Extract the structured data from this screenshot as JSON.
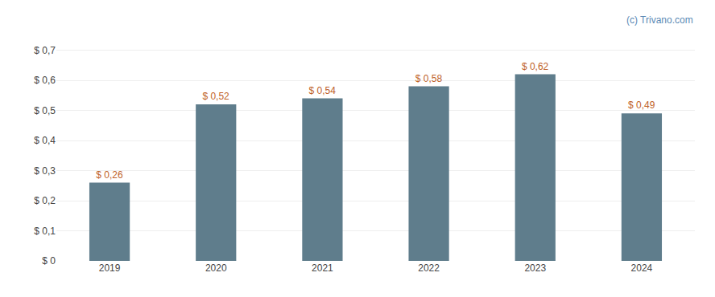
{
  "chart_data": {
    "type": "bar",
    "categories": [
      "2019",
      "2020",
      "2021",
      "2022",
      "2023",
      "2024"
    ],
    "values": [
      0.26,
      0.52,
      0.54,
      0.58,
      0.62,
      0.49
    ],
    "value_labels": [
      "$ 0,26",
      "$ 0,52",
      "$ 0,54",
      "$ 0,58",
      "$ 0,62",
      "$ 0,49"
    ],
    "data_labels": true,
    "color": "#5f7d8c",
    "ylim": [
      0,
      0.76
    ],
    "yticks": [
      {
        "value": 0.0,
        "label": "$ 0"
      },
      {
        "value": 0.1,
        "label": "$ 0,1"
      },
      {
        "value": 0.2,
        "label": "$ 0,2"
      },
      {
        "value": 0.3,
        "label": "$ 0,3"
      },
      {
        "value": 0.4,
        "label": "$ 0,4"
      },
      {
        "value": 0.5,
        "label": "$ 0,5"
      },
      {
        "value": 0.6,
        "label": "$ 0,6"
      },
      {
        "value": 0.7,
        "label": "$ 0,7"
      }
    ],
    "grid": true,
    "annotations": [
      "(c) Trivano.com"
    ]
  }
}
